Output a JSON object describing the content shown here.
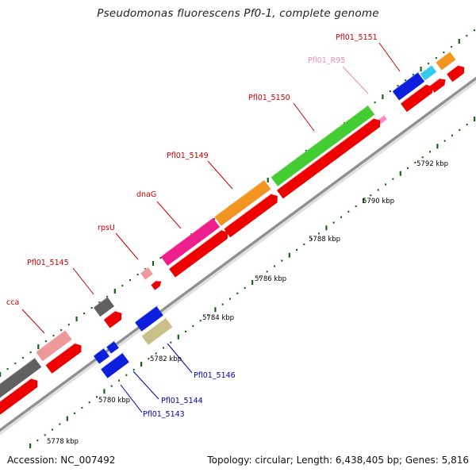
{
  "title": "Pseudomonas fluorescens Pf0-1, complete genome",
  "footer": {
    "accession": "Accession: NC_007492",
    "summary": "Topology: circular; Length: 6,438,405 bp; Genes: 5,816"
  },
  "colors": {
    "cds": "#ee0000",
    "label_red": "#cc0000",
    "label_blue": "#0000bb",
    "label_pink": "#ee88bb",
    "backbone": "#999999",
    "tick": "#116611"
  },
  "scale_labels": [
    "5778 kbp",
    "5780 kbp",
    "5782 kbp",
    "5784 kbp",
    "5786 kbp",
    "5788 kbp",
    "5790 kbp",
    "5792 kbp"
  ],
  "gene_labels": [
    {
      "text": "cca",
      "color": "red"
    },
    {
      "text": "Pfl01_5145",
      "color": "red"
    },
    {
      "text": "rpsU",
      "color": "red"
    },
    {
      "text": "dnaG",
      "color": "red"
    },
    {
      "text": "Pfl01_5149",
      "color": "red"
    },
    {
      "text": "Pfl01_5150",
      "color": "red"
    },
    {
      "text": "Pfl01_R95",
      "color": "pink"
    },
    {
      "text": "Pfl01_5151",
      "color": "red"
    },
    {
      "text": "Pfl01_5146",
      "color": "blue"
    },
    {
      "text": "Pfl01_5144",
      "color": "blue"
    },
    {
      "text": "Pfl01_5143",
      "color": "blue"
    }
  ]
}
